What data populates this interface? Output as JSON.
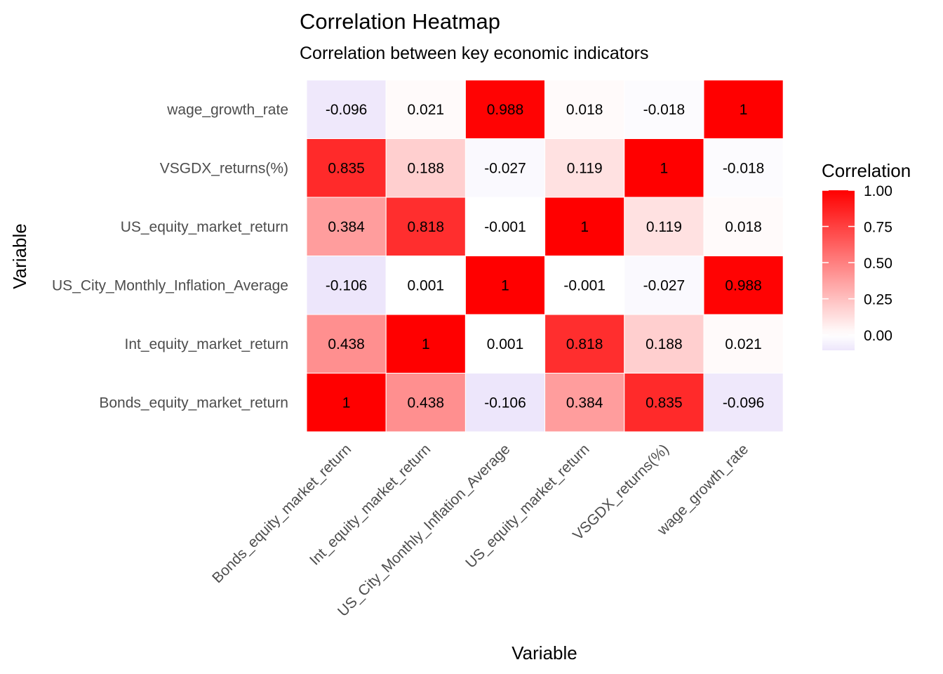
{
  "chart_data": {
    "type": "heatmap",
    "title": "Correlation Heatmap",
    "subtitle": "Correlation between key economic indicators",
    "xlabel": "Variable",
    "ylabel": "Variable",
    "variables": [
      "Bonds_equity_market_return",
      "Int_equity_market_return",
      "US_City_Monthly_Inflation_Average",
      "US_equity_market_return",
      "VSGDX_returns(%)",
      "wage_growth_rate"
    ],
    "matrix": [
      [
        1,
        0.438,
        -0.106,
        0.384,
        0.835,
        -0.096
      ],
      [
        0.438,
        1,
        0.001,
        0.818,
        0.188,
        0.021
      ],
      [
        -0.106,
        0.001,
        1,
        -0.001,
        -0.027,
        0.988
      ],
      [
        0.384,
        0.818,
        -0.001,
        1,
        0.119,
        0.018
      ],
      [
        0.835,
        0.188,
        -0.027,
        0.119,
        1,
        -0.018
      ],
      [
        -0.096,
        0.021,
        0.988,
        0.018,
        -0.018,
        1
      ]
    ],
    "cell_labels": [
      [
        "1",
        "0.438",
        "-0.106",
        "0.384",
        "0.835",
        "-0.096"
      ],
      [
        "0.438",
        "1",
        "0.001",
        "0.818",
        "0.188",
        "0.021"
      ],
      [
        "-0.106",
        "0.001",
        "1",
        "-0.001",
        "-0.027",
        "0.988"
      ],
      [
        "0.384",
        "0.818",
        "-0.001",
        "1",
        "0.119",
        "0.018"
      ],
      [
        "0.835",
        "0.188",
        "-0.027",
        "0.119",
        "1",
        "-0.018"
      ],
      [
        "-0.096",
        "0.021",
        "0.988",
        "0.018",
        "-0.018",
        "1"
      ]
    ],
    "legend": {
      "title": "Correlation",
      "position": "right",
      "ticks": [
        1,
        0.75,
        0.5,
        0.25,
        0
      ],
      "tick_labels": [
        "1.00",
        "0.75",
        "0.50",
        "0.25",
        "0.00"
      ],
      "range": [
        -0.106,
        1
      ]
    },
    "colors": {
      "low": "#ede6fb",
      "mid": "#ffffff",
      "high": "#ff0000"
    },
    "grid": false
  }
}
